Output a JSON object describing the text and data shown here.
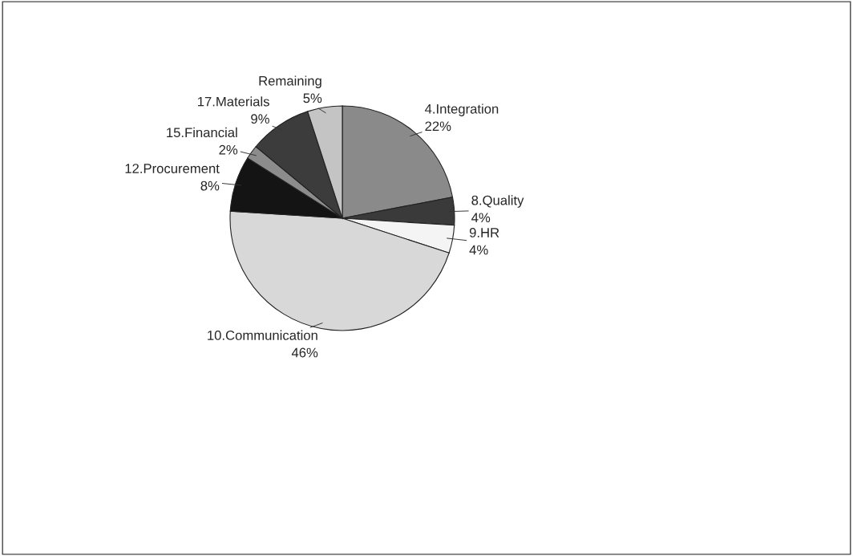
{
  "chart_data": {
    "type": "pie",
    "categories": [
      "4.Integration",
      "8.Quality",
      "9.HR",
      "10.Communication",
      "12.Procurement",
      "15.Financial",
      "17.Materials",
      "Remaining"
    ],
    "values": [
      22,
      4,
      4,
      46,
      8,
      2,
      9,
      5
    ],
    "value_labels": [
      "22%",
      "4%",
      "4%",
      "46%",
      "8%",
      "2%",
      "9%",
      "5%"
    ],
    "colors": [
      "#8a8a8a",
      "#3a3a3a",
      "#f4f4f4",
      "#d8d8d8",
      "#141414",
      "#8c8c8c",
      "#3c3c3c",
      "#c4c4c4"
    ],
    "legend": false
  }
}
